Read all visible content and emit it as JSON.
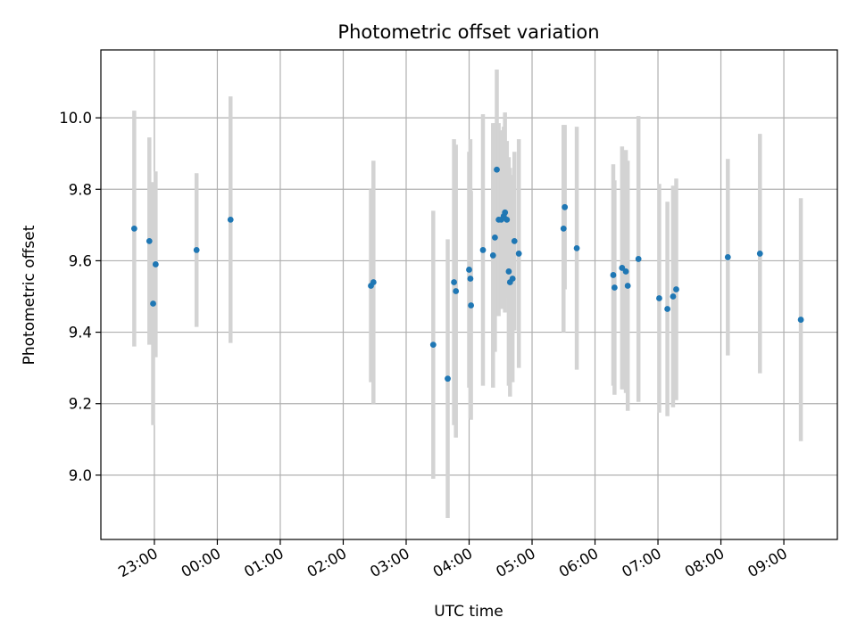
{
  "chart_data": {
    "type": "scatter",
    "title": "Photometric offset variation",
    "xlabel": "UTC time",
    "ylabel": "Photometric offset",
    "grid": true,
    "x_unit": "hours (UTC, hours after 00:00; negative = before midnight)",
    "xlim": [
      -23.0,
      9.85
    ],
    "ylim": [
      8.82,
      10.19
    ],
    "x_ticks": [
      {
        "x": -1.0,
        "label": "23:00"
      },
      {
        "x": 0.0,
        "label": "00:00"
      },
      {
        "x": 1.0,
        "label": "01:00"
      },
      {
        "x": 2.0,
        "label": "02:00"
      },
      {
        "x": 3.0,
        "label": "03:00"
      },
      {
        "x": 4.0,
        "label": "04:00"
      },
      {
        "x": 5.0,
        "label": "05:00"
      },
      {
        "x": 6.0,
        "label": "06:00"
      },
      {
        "x": 7.0,
        "label": "07:00"
      },
      {
        "x": 8.0,
        "label": "08:00"
      },
      {
        "x": 9.0,
        "label": "09:00"
      }
    ],
    "y_ticks": [
      {
        "y": 9.0,
        "label": "9.0"
      },
      {
        "y": 9.2,
        "label": "9.2"
      },
      {
        "y": 9.4,
        "label": "9.4"
      },
      {
        "y": 9.6,
        "label": "9.6"
      },
      {
        "y": 9.8,
        "label": "9.8"
      },
      {
        "y": 10.0,
        "label": "10.0"
      }
    ],
    "marker_color": "#1f77b4",
    "errorbar_color": "#d3d3d3",
    "points": [
      {
        "x": -1.32,
        "y": 9.69,
        "err": 0.33
      },
      {
        "x": -1.08,
        "y": 9.655,
        "err": 0.29
      },
      {
        "x": -1.02,
        "y": 9.48,
        "err": 0.34
      },
      {
        "x": -0.98,
        "y": 9.59,
        "err": 0.26
      },
      {
        "x": -0.33,
        "y": 9.63,
        "err": 0.215
      },
      {
        "x": 0.21,
        "y": 9.715,
        "err": 0.345
      },
      {
        "x": 2.44,
        "y": 9.53,
        "err": 0.27
      },
      {
        "x": 2.48,
        "y": 9.54,
        "err": 0.34
      },
      {
        "x": 3.43,
        "y": 9.365,
        "err": 0.375
      },
      {
        "x": 3.66,
        "y": 9.27,
        "err": 0.39
      },
      {
        "x": 3.76,
        "y": 9.54,
        "err": 0.4
      },
      {
        "x": 3.79,
        "y": 9.515,
        "err": 0.41
      },
      {
        "x": 4.0,
        "y": 9.575,
        "err": 0.33
      },
      {
        "x": 4.02,
        "y": 9.55,
        "err": 0.39
      },
      {
        "x": 4.03,
        "y": 9.475,
        "err": 0.32
      },
      {
        "x": 4.22,
        "y": 9.63,
        "err": 0.38
      },
      {
        "x": 4.38,
        "y": 9.615,
        "err": 0.37
      },
      {
        "x": 4.41,
        "y": 9.665,
        "err": 0.32
      },
      {
        "x": 4.44,
        "y": 9.855,
        "err": 0.28
      },
      {
        "x": 4.47,
        "y": 9.715,
        "err": 0.27
      },
      {
        "x": 4.51,
        "y": 9.715,
        "err": 0.25
      },
      {
        "x": 4.55,
        "y": 9.725,
        "err": 0.25
      },
      {
        "x": 4.57,
        "y": 9.735,
        "err": 0.28
      },
      {
        "x": 4.6,
        "y": 9.715,
        "err": 0.22
      },
      {
        "x": 4.63,
        "y": 9.57,
        "err": 0.32
      },
      {
        "x": 4.65,
        "y": 9.54,
        "err": 0.32
      },
      {
        "x": 4.69,
        "y": 9.55,
        "err": 0.29
      },
      {
        "x": 4.72,
        "y": 9.655,
        "err": 0.25
      },
      {
        "x": 4.79,
        "y": 9.62,
        "err": 0.32
      },
      {
        "x": 5.5,
        "y": 9.69,
        "err": 0.29
      },
      {
        "x": 5.52,
        "y": 9.75,
        "err": 0.23
      },
      {
        "x": 5.71,
        "y": 9.635,
        "err": 0.34
      },
      {
        "x": 6.29,
        "y": 9.56,
        "err": 0.31
      },
      {
        "x": 6.31,
        "y": 9.525,
        "err": 0.3
      },
      {
        "x": 6.43,
        "y": 9.58,
        "err": 0.34
      },
      {
        "x": 6.49,
        "y": 9.57,
        "err": 0.34
      },
      {
        "x": 6.52,
        "y": 9.53,
        "err": 0.35
      },
      {
        "x": 6.69,
        "y": 9.605,
        "err": 0.4
      },
      {
        "x": 7.02,
        "y": 9.495,
        "err": 0.32
      },
      {
        "x": 7.15,
        "y": 9.465,
        "err": 0.3
      },
      {
        "x": 7.24,
        "y": 9.5,
        "err": 0.31
      },
      {
        "x": 7.29,
        "y": 9.52,
        "err": 0.31
      },
      {
        "x": 8.11,
        "y": 9.61,
        "err": 0.275
      },
      {
        "x": 8.62,
        "y": 9.62,
        "err": 0.335
      },
      {
        "x": 9.27,
        "y": 9.435,
        "err": 0.34
      }
    ]
  }
}
